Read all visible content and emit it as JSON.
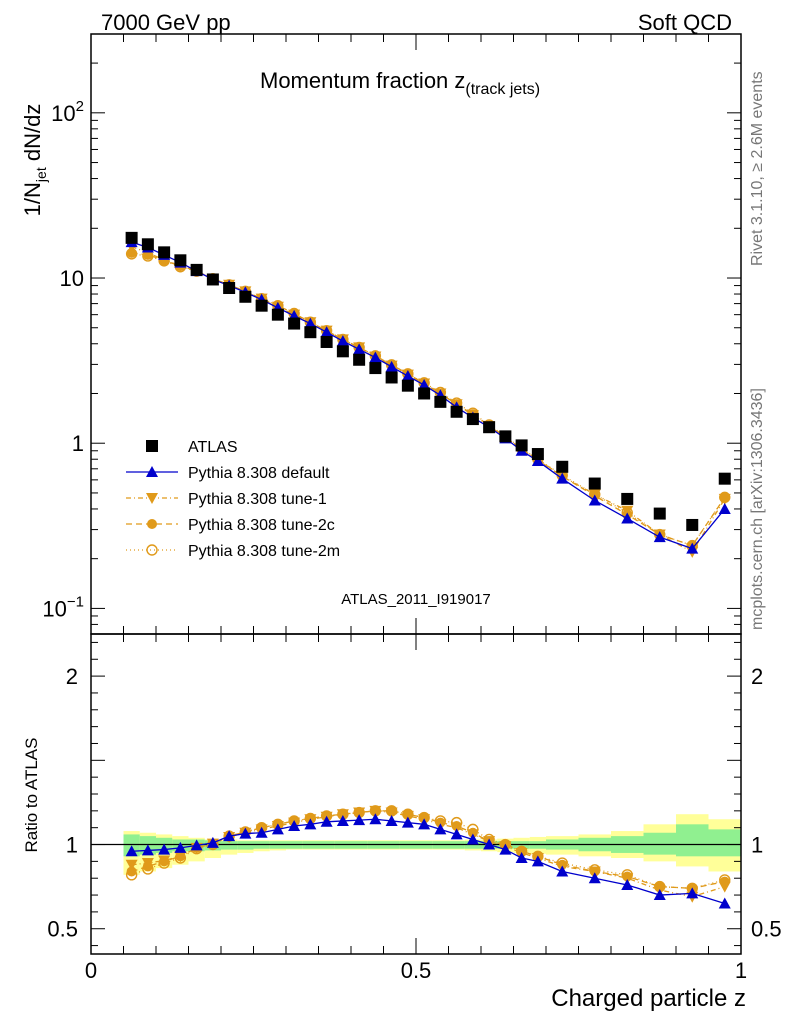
{
  "header": {
    "left": "7000 GeV pp",
    "right": "Soft QCD"
  },
  "side_notes": {
    "rivet": "Rivet 3.1.10, ≥ 2.6M events",
    "mcplots": "mcplots.cern.ch [arXiv:1306.3436]"
  },
  "colors": {
    "data": "#000000",
    "default": "#0000cc",
    "tunes": "#e09a1a",
    "band_inner": "#90f090",
    "band_outer": "#ffff99",
    "watermark": "#999999"
  },
  "chart_data": [
    {
      "type": "scatter",
      "title": "Momentum fraction z",
      "title_sub": "(track jets)",
      "ylabel_main": "1/N",
      "ylabel_sub": "jet",
      "ylabel_tail": " dN/dz",
      "yscale": "log",
      "xlim": [
        0,
        1
      ],
      "ylim": [
        0.07,
        300
      ],
      "y_ticks": [
        {
          "value": 0.1,
          "base": "10",
          "exp": "−1"
        },
        {
          "value": 1,
          "base": "1",
          "exp": ""
        },
        {
          "value": 10,
          "base": "10",
          "exp": ""
        },
        {
          "value": 100,
          "base": "10",
          "exp": "2"
        }
      ],
      "watermark": "ATLAS_2011_I919017",
      "legend_position": "lower-left",
      "x": [
        0.0625,
        0.0875,
        0.1125,
        0.1375,
        0.1625,
        0.1875,
        0.2125,
        0.2375,
        0.2625,
        0.2875,
        0.3125,
        0.3375,
        0.3625,
        0.3875,
        0.4125,
        0.4375,
        0.4625,
        0.4875,
        0.5125,
        0.5375,
        0.5625,
        0.5875,
        0.6125,
        0.6375,
        0.6625,
        0.6875,
        0.725,
        0.775,
        0.825,
        0.875,
        0.925,
        0.975
      ],
      "series": [
        {
          "name": "ATLAS",
          "marker": "square-filled",
          "values": [
            17.5,
            16.0,
            14.3,
            12.8,
            11.2,
            9.8,
            8.7,
            7.7,
            6.8,
            6.0,
            5.3,
            4.7,
            4.1,
            3.6,
            3.2,
            2.85,
            2.5,
            2.23,
            2.0,
            1.78,
            1.55,
            1.4,
            1.25,
            1.1,
            0.97,
            0.86,
            0.72,
            0.57,
            0.46,
            0.375,
            0.32,
            0.61
          ]
        },
        {
          "name": "Pythia 8.308 default",
          "marker": "triangle-up-filled",
          "values": [
            16.5,
            15.3,
            13.8,
            12.4,
            11.0,
            9.8,
            9.0,
            8.2,
            7.4,
            6.6,
            5.9,
            5.3,
            4.7,
            4.15,
            3.7,
            3.3,
            2.9,
            2.55,
            2.25,
            1.95,
            1.65,
            1.43,
            1.25,
            1.07,
            0.9,
            0.78,
            0.61,
            0.45,
            0.35,
            0.27,
            0.23,
            0.4
          ]
        },
        {
          "name": "Pythia 8.308 tune-1",
          "marker": "triangle-down-filled",
          "values": [
            15.5,
            14.2,
            12.9,
            11.9,
            11.0,
            9.9,
            9.1,
            8.3,
            7.5,
            6.7,
            6.0,
            5.4,
            4.8,
            4.25,
            3.8,
            3.35,
            2.95,
            2.6,
            2.3,
            2.0,
            1.72,
            1.48,
            1.27,
            1.09,
            0.92,
            0.79,
            0.63,
            0.49,
            0.39,
            0.28,
            0.22,
            0.46
          ]
        },
        {
          "name": "Pythia 8.308 tune-2c",
          "marker": "circle-filled",
          "values": [
            14.2,
            13.8,
            12.8,
            11.8,
            11.0,
            9.9,
            9.1,
            8.3,
            7.5,
            6.8,
            6.1,
            5.4,
            4.8,
            4.25,
            3.8,
            3.38,
            2.98,
            2.63,
            2.3,
            2.0,
            1.72,
            1.5,
            1.28,
            1.1,
            0.92,
            0.8,
            0.63,
            0.48,
            0.37,
            0.28,
            0.24,
            0.47
          ]
        },
        {
          "name": "Pythia 8.308 tune-2m",
          "marker": "circle-open",
          "values": [
            14.0,
            13.6,
            12.7,
            11.7,
            11.0,
            9.9,
            9.1,
            8.3,
            7.5,
            6.8,
            6.1,
            5.4,
            4.8,
            4.25,
            3.8,
            3.38,
            2.98,
            2.63,
            2.32,
            2.03,
            1.75,
            1.52,
            1.29,
            1.1,
            0.93,
            0.8,
            0.64,
            0.49,
            0.38,
            0.28,
            0.24,
            0.47
          ]
        }
      ]
    },
    {
      "type": "line",
      "ylabel": "Ratio to ATLAS",
      "xlabel": "Charged particle z",
      "xlim": [
        0,
        1
      ],
      "ylim": [
        0.35,
        2.25
      ],
      "x_ticks": [
        {
          "value": 0,
          "label": "0"
        },
        {
          "value": 0.5,
          "label": "0.5"
        },
        {
          "value": 1,
          "label": "1"
        }
      ],
      "y_ticks": [
        {
          "value": 0.5,
          "label": "0.5"
        },
        {
          "value": 1,
          "label": "1"
        },
        {
          "value": 2,
          "label": "2"
        }
      ],
      "x": [
        0.0625,
        0.0875,
        0.1125,
        0.1375,
        0.1625,
        0.1875,
        0.2125,
        0.2375,
        0.2625,
        0.2875,
        0.3125,
        0.3375,
        0.3625,
        0.3875,
        0.4125,
        0.4375,
        0.4625,
        0.4875,
        0.5125,
        0.5375,
        0.5625,
        0.5875,
        0.6125,
        0.6375,
        0.6625,
        0.6875,
        0.725,
        0.775,
        0.825,
        0.875,
        0.925,
        0.975
      ],
      "bands": {
        "edges": [
          0.05,
          0.075,
          0.1,
          0.125,
          0.15,
          0.175,
          0.2,
          0.225,
          0.25,
          0.275,
          0.3,
          0.325,
          0.35,
          0.375,
          0.4,
          0.425,
          0.45,
          0.475,
          0.5,
          0.525,
          0.55,
          0.575,
          0.6,
          0.625,
          0.65,
          0.675,
          0.7,
          0.75,
          0.8,
          0.85,
          0.9,
          0.95,
          1.0
        ],
        "inner_low": [
          0.93,
          0.94,
          0.95,
          0.96,
          0.96,
          0.965,
          0.97,
          0.97,
          0.975,
          0.975,
          0.975,
          0.975,
          0.975,
          0.975,
          0.975,
          0.975,
          0.975,
          0.975,
          0.975,
          0.975,
          0.975,
          0.975,
          0.975,
          0.975,
          0.975,
          0.975,
          0.97,
          0.96,
          0.95,
          0.94,
          0.93,
          0.93
        ],
        "inner_high": [
          1.06,
          1.05,
          1.04,
          1.03,
          1.03,
          1.025,
          1.02,
          1.02,
          1.02,
          1.02,
          1.02,
          1.02,
          1.02,
          1.02,
          1.02,
          1.02,
          1.02,
          1.02,
          1.02,
          1.02,
          1.02,
          1.02,
          1.02,
          1.02,
          1.02,
          1.02,
          1.03,
          1.04,
          1.05,
          1.07,
          1.12,
          1.09
        ],
        "outer_low": [
          0.82,
          0.84,
          0.86,
          0.88,
          0.9,
          0.92,
          0.94,
          0.95,
          0.96,
          0.965,
          0.97,
          0.97,
          0.97,
          0.97,
          0.97,
          0.97,
          0.97,
          0.97,
          0.97,
          0.97,
          0.97,
          0.965,
          0.96,
          0.955,
          0.95,
          0.945,
          0.94,
          0.93,
          0.92,
          0.9,
          0.87,
          0.84
        ],
        "outer_high": [
          1.08,
          1.07,
          1.06,
          1.05,
          1.04,
          1.03,
          1.03,
          1.025,
          1.025,
          1.025,
          1.025,
          1.025,
          1.025,
          1.025,
          1.025,
          1.025,
          1.025,
          1.025,
          1.025,
          1.025,
          1.025,
          1.03,
          1.03,
          1.035,
          1.04,
          1.045,
          1.05,
          1.06,
          1.08,
          1.12,
          1.18,
          1.15
        ]
      },
      "series": [
        {
          "name": "Pythia 8.308 default",
          "values": [
            0.96,
            0.965,
            0.97,
            0.98,
            0.995,
            1.01,
            1.05,
            1.065,
            1.07,
            1.09,
            1.11,
            1.12,
            1.135,
            1.14,
            1.145,
            1.15,
            1.14,
            1.13,
            1.12,
            1.09,
            1.06,
            1.03,
            1.0,
            0.97,
            0.92,
            0.9,
            0.84,
            0.8,
            0.76,
            0.7,
            0.71,
            0.65
          ]
        },
        {
          "name": "Pythia 8.308 tune-1",
          "values": [
            0.88,
            0.89,
            0.905,
            0.93,
            0.98,
            1.005,
            1.045,
            1.07,
            1.09,
            1.11,
            1.13,
            1.15,
            1.165,
            1.18,
            1.19,
            1.2,
            1.19,
            1.17,
            1.15,
            1.12,
            1.1,
            1.06,
            1.02,
            0.99,
            0.95,
            0.92,
            0.87,
            0.84,
            0.8,
            0.73,
            0.69,
            0.75
          ]
        },
        {
          "name": "Pythia 8.308 tune-2c",
          "values": [
            0.84,
            0.87,
            0.9,
            0.93,
            0.98,
            1.005,
            1.05,
            1.075,
            1.1,
            1.12,
            1.14,
            1.155,
            1.17,
            1.18,
            1.19,
            1.2,
            1.2,
            1.18,
            1.16,
            1.13,
            1.11,
            1.07,
            1.02,
            1.0,
            0.96,
            0.93,
            0.88,
            0.84,
            0.81,
            0.75,
            0.74,
            0.78
          ]
        },
        {
          "name": "Pythia 8.308 tune-2m",
          "values": [
            0.82,
            0.855,
            0.89,
            0.92,
            0.975,
            1.0,
            1.05,
            1.075,
            1.1,
            1.12,
            1.14,
            1.155,
            1.17,
            1.18,
            1.19,
            1.2,
            1.2,
            1.18,
            1.16,
            1.14,
            1.13,
            1.09,
            1.03,
            1.0,
            0.96,
            0.93,
            0.89,
            0.85,
            0.82,
            0.75,
            0.74,
            0.79
          ]
        }
      ]
    }
  ]
}
